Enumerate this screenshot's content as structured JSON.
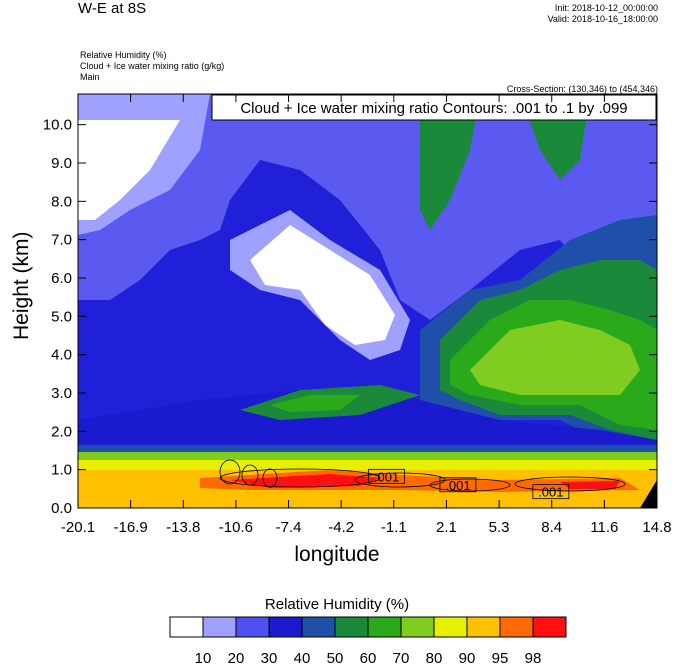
{
  "header": {
    "title": "W-E at 8S",
    "init": "Init: 2018-10-12_00:00:00",
    "valid": "Valid: 2018-10-16_18:00:00",
    "field_lines": [
      "Relative Humidity   (%)",
      "Cloud + Ice water mixing ratio   (g/kg)",
      "Main"
    ],
    "cross_section": "Cross-Section: (130,346) to (454,346)"
  },
  "chart_data": {
    "type": "heatmap",
    "title": "W-E at 8S",
    "xlabel": "longitude",
    "ylabel": "Height (km)",
    "xlim": [
      -20.1,
      14.8
    ],
    "ylim": [
      0.0,
      10.8
    ],
    "x_tick_labels": [
      "-20.1",
      "-16.9",
      "-13.8",
      "-10.6",
      "-7.4",
      "-4.2",
      "-1.1",
      "2.1",
      "5.3",
      "8.4",
      "11.6",
      "14.8"
    ],
    "y_tick_labels": [
      "0.0",
      "1.0",
      "2.0",
      "3.0",
      "4.0",
      "5.0",
      "6.0",
      "7.0",
      "8.0",
      "9.0",
      "10.0"
    ],
    "contour_title": "Cloud + Ice water mixing ratio Contours: .001 to .1 by .099",
    "contour_labels": [
      {
        "text": ".001",
        "x": -1.5,
        "y": 0.8
      },
      {
        "text": ".001",
        "x": 2.8,
        "y": 0.58
      },
      {
        "text": ".001",
        "x": 8.4,
        "y": 0.4
      }
    ],
    "colorbar_title": "Relative Humidity  (%)",
    "colorbar_levels": [
      "10",
      "20",
      "30",
      "40",
      "50",
      "60",
      "70",
      "80",
      "90",
      "95",
      "98"
    ],
    "colorbar_colors": [
      "#ffffff",
      "#a0a0ff",
      "#5050f0",
      "#1a1acf",
      "#1f4fa8",
      "#1a8a3a",
      "#2aaa1a",
      "#80cc20",
      "#e6f000",
      "#ffc000",
      "#ff6a00",
      "#ff1010"
    ],
    "regions": [
      {
        "x": -20.1,
        "y0": 0.0,
        "y1": 0.6,
        "level": 9
      },
      {
        "x": -20.1,
        "y0": 0.6,
        "y1": 1.3,
        "level": 8
      },
      {
        "x": -20.1,
        "y0": 1.3,
        "y1": 2.0,
        "level": 4
      },
      {
        "x": -20.1,
        "y0": 2.0,
        "y1": 4.0,
        "level": 3
      },
      {
        "x": -20.1,
        "y0": 4.0,
        "y1": 8.5,
        "level": 2
      },
      {
        "x": -20.1,
        "y0": 8.5,
        "y1": 10.8,
        "level": 1
      }
    ]
  }
}
